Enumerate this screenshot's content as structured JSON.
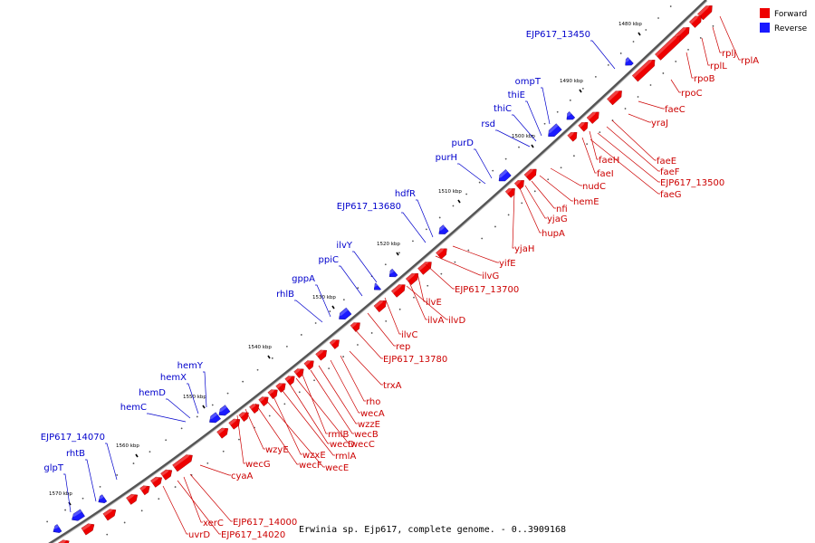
{
  "caption": "Erwinia sp. Ejp617, complete genome. - 0..3909168",
  "colors": {
    "forward": "#ee0000",
    "reverse": "#1a1aff",
    "forward_label": "#cc0000",
    "reverse_label": "#0000cc",
    "backbone": "#777777"
  },
  "legend": [
    {
      "label": "Forward",
      "color": "#ee0000"
    },
    {
      "label": "Reverse",
      "color": "#1a1aff"
    }
  ],
  "ticks": [
    "1480 kbp",
    "1490 kbp",
    "1500 kbp",
    "1510 kbp",
    "1520 kbp",
    "1530 kbp",
    "1540 kbp",
    "1550 kbp",
    "1560 kbp",
    "1570 kbp"
  ],
  "forward_labels": [
    "rplA",
    "rplJ",
    "rplL",
    "rpoB",
    "rpoC",
    "faeC",
    "yraJ",
    "faeE",
    "faeF",
    "EJP617_13500",
    "faeG",
    "faeH",
    "faeI",
    "nudC",
    "hemE",
    "nfi",
    "yjaG",
    "hupA",
    "yjaH",
    "yifE",
    "ilvG",
    "EJP617_13700",
    "ilvE",
    "ilvA",
    "ilvD",
    "ilvC",
    "rep",
    "EJP617_13780",
    "trxA",
    "rho",
    "wecA",
    "wzzE",
    "wecB",
    "rmlB",
    "wecC",
    "wecD",
    "rmlA",
    "wzxE",
    "wecE",
    "wecF",
    "wzyE",
    "wecG",
    "cyaA",
    "EJP617_14000",
    "xerC",
    "EJP617_14020",
    "uvrD"
  ],
  "reverse_labels": [
    "EJP617_13450",
    "ompT",
    "thiE",
    "thiC",
    "rsd",
    "purD",
    "purH",
    "hdfR",
    "EJP617_13680",
    "ilvY",
    "ppiC",
    "gppA",
    "rhlB",
    "hemY",
    "hemX",
    "hemD",
    "hemC",
    "EJP617_14070",
    "rhtB",
    "glpT"
  ]
}
